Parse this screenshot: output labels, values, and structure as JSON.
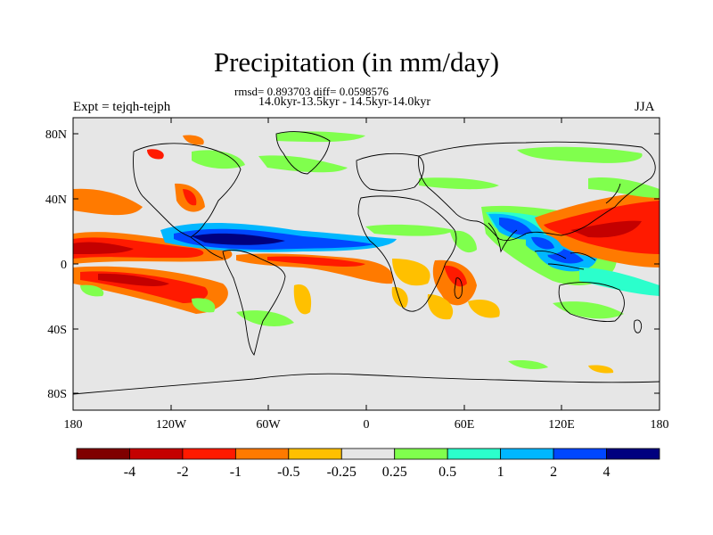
{
  "title": "Precipitation (in mm/day)",
  "stats": "rmsd= 0.893703 diff= 0.0598576",
  "period": "14.0kyr-13.5kyr - 14.5kyr-14.0kyr",
  "experiment": "Expt = tejqh-tejph",
  "season": "JJA",
  "lat_labels": [
    "80N",
    "40N",
    "0",
    "40S",
    "80S"
  ],
  "lon_labels": [
    "180",
    "120W",
    "60W",
    "0",
    "60E",
    "120E",
    "180"
  ],
  "colorbar": {
    "colors": [
      "#7f0000",
      "#c40000",
      "#ff1a00",
      "#ff7a00",
      "#ffc000",
      "#e6e6e6",
      "#80ff4d",
      "#2bffcc",
      "#00b7ff",
      "#0047ff",
      "#00007f"
    ],
    "labels": [
      "-4",
      "-2",
      "-1",
      "-0.5",
      "-0.25",
      "0.25",
      "0.5",
      "1",
      "2",
      "4"
    ]
  }
}
